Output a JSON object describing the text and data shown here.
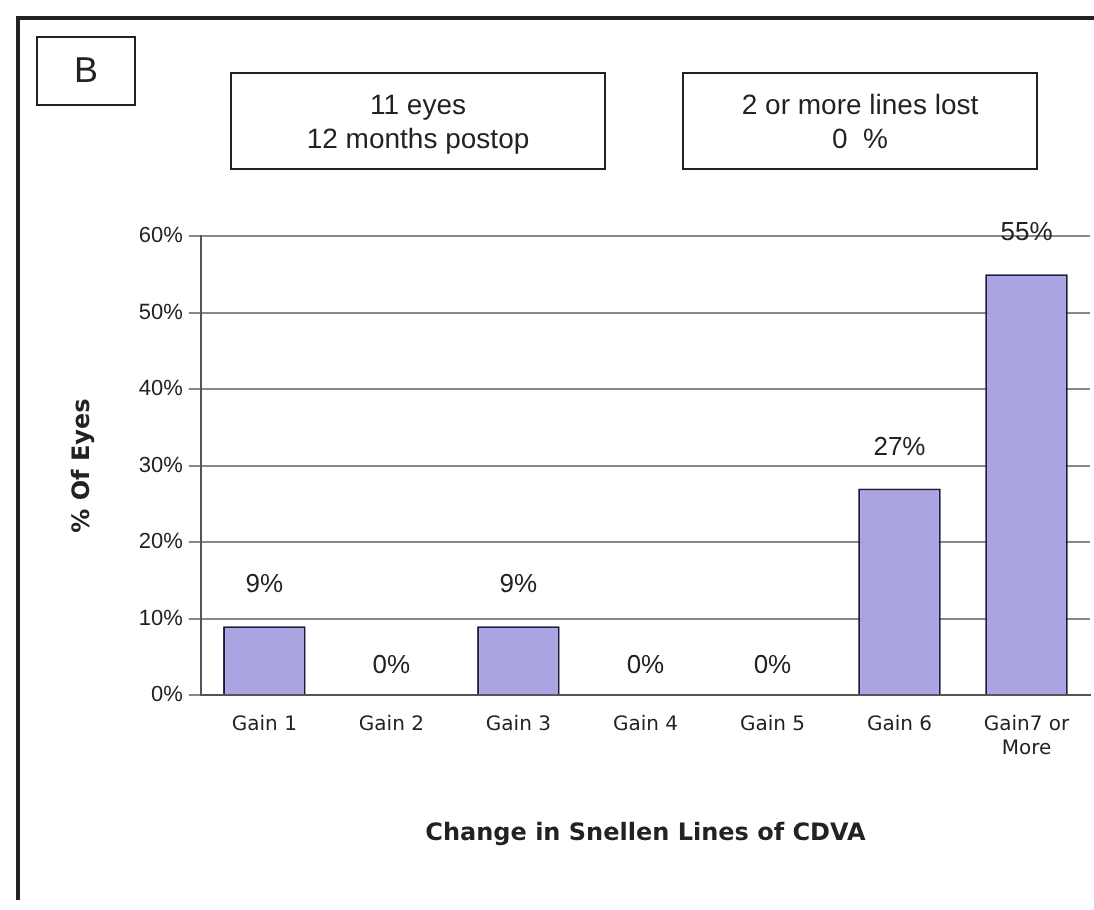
{
  "chart_data": {
    "type": "bar",
    "xlabel": "Change in Snellen Lines of CDVA",
    "ylabel": "% Of Eyes",
    "annotations": [
      "B",
      "11 eyes\n12 months postop",
      "2 or more lines lost\n0  %"
    ],
    "categories": [
      "Gain 1",
      "Gain 2",
      "Gain 3",
      "Gain 4",
      "Gain 5",
      "Gain 6",
      "Gain7 or More"
    ],
    "values": [
      9,
      0,
      9,
      0,
      0,
      27,
      55
    ],
    "value_labels": [
      "9%",
      "0%",
      "9%",
      "0%",
      "0%",
      "27%",
      "55%"
    ],
    "color": "#aaa5e2",
    "ylim": [
      0,
      60
    ],
    "yticks": [
      {
        "value": 0,
        "label": "0%"
      },
      {
        "value": 10,
        "label": "10%"
      },
      {
        "value": 20,
        "label": "20%"
      },
      {
        "value": 30,
        "label": "30%"
      },
      {
        "value": 40,
        "label": "40%"
      },
      {
        "value": 50,
        "label": "50%"
      },
      {
        "value": 60,
        "label": "60%"
      }
    ],
    "grid": "y",
    "legend": false
  }
}
